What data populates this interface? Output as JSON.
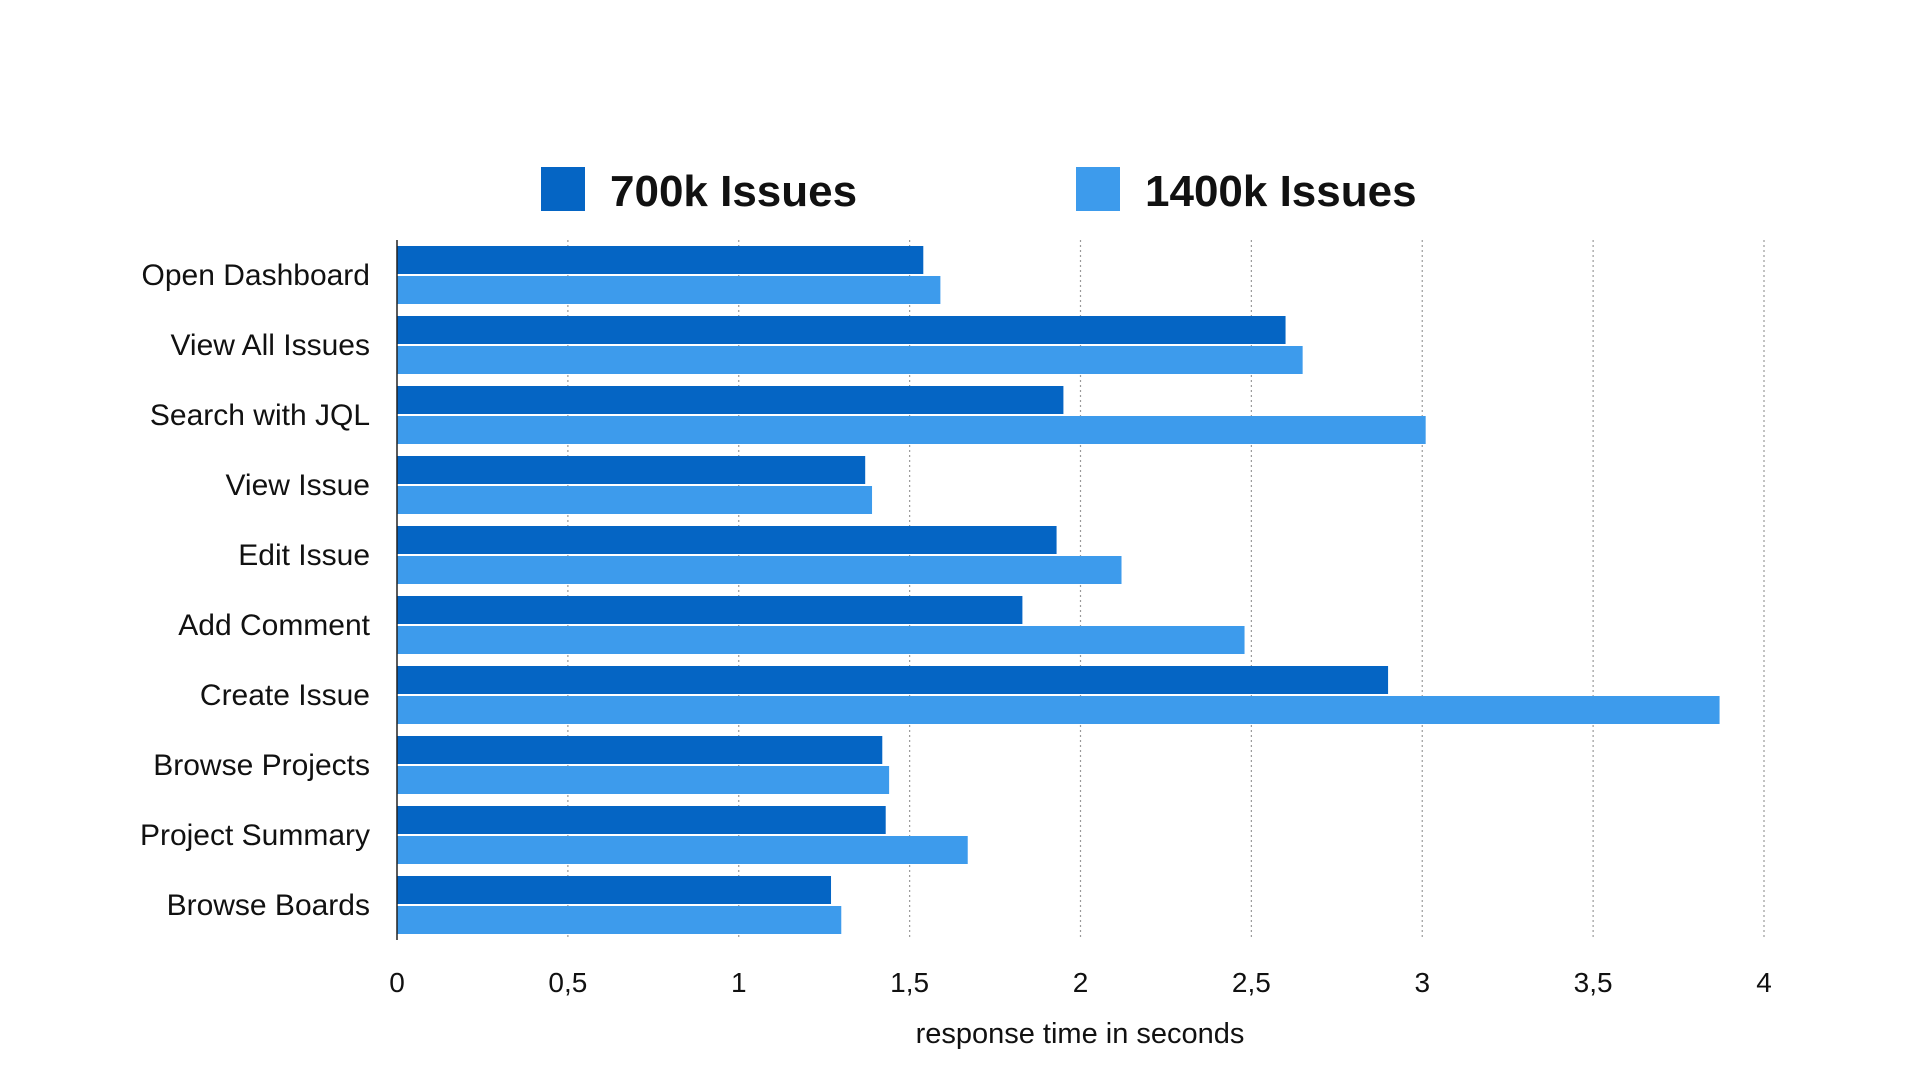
{
  "chart_data": {
    "type": "bar",
    "orientation": "horizontal",
    "categories": [
      "Open Dashboard",
      "View All Issues",
      "Search with JQL",
      "View Issue",
      "Edit Issue",
      "Add Comment",
      "Create Issue",
      "Browse Projects",
      "Project Summary",
      "Browse Boards"
    ],
    "series": [
      {
        "name": "700k Issues",
        "color": "#0565C4",
        "values": [
          1.54,
          2.6,
          1.95,
          1.37,
          1.93,
          1.83,
          2.9,
          1.42,
          1.43,
          1.27
        ]
      },
      {
        "name": "1400k Issues",
        "color": "#3D9BEC",
        "values": [
          1.59,
          2.65,
          3.01,
          1.39,
          2.12,
          2.48,
          3.87,
          1.44,
          1.67,
          1.3
        ]
      }
    ],
    "xlim": [
      0,
      4
    ],
    "xticks": [
      0,
      0.5,
      1,
      1.5,
      2,
      2.5,
      3,
      3.5,
      4
    ],
    "xtick_labels": [
      "0",
      "0,5",
      "1",
      "1,5",
      "2",
      "2,5",
      "3",
      "3,5",
      "4"
    ],
    "xlabel": "response time in seconds",
    "ylabel": "",
    "title": "",
    "grid": "vertical-dotted",
    "legend_position": "top-center"
  }
}
